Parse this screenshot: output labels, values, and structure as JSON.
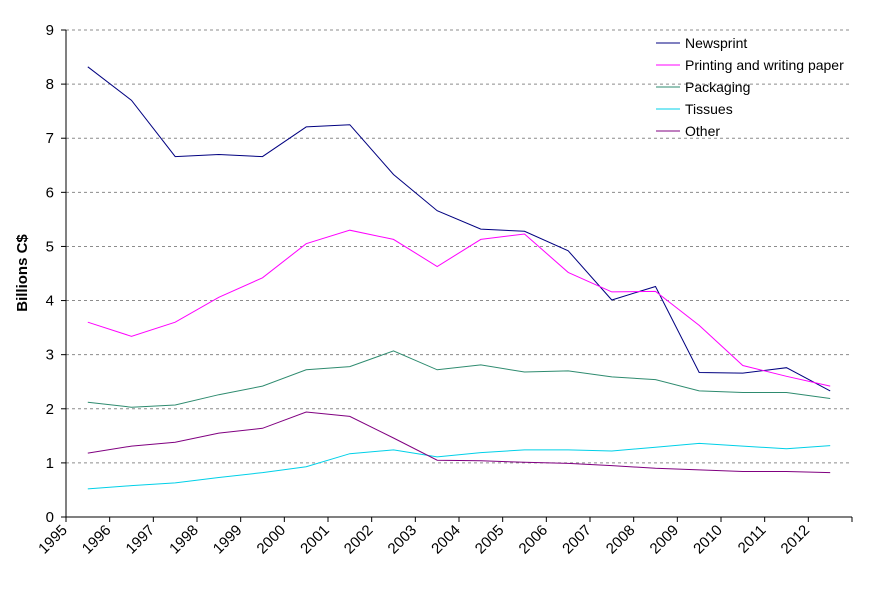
{
  "chart_data": {
    "type": "line",
    "title": "",
    "xlabel": "",
    "ylabel": "Billions C$",
    "ylim": [
      0,
      9
    ],
    "yticks": [
      "0",
      "1",
      "2",
      "3",
      "4",
      "5",
      "6",
      "7",
      "8",
      "9"
    ],
    "categories": [
      "1995",
      "1996",
      "1997",
      "1998",
      "1999",
      "2000",
      "2001",
      "2002",
      "2003",
      "2004",
      "2005",
      "2006",
      "2007",
      "2008",
      "2009",
      "2010",
      "2011",
      "2012"
    ],
    "grid": true,
    "legend_position": "top-right",
    "series": [
      {
        "name": "Newsprint",
        "color": "#000080",
        "values": [
          8.32,
          7.7,
          6.66,
          6.7,
          6.66,
          7.21,
          7.25,
          6.33,
          5.66,
          5.32,
          5.28,
          4.92,
          4.01,
          4.26,
          2.67,
          2.66,
          2.76,
          2.33
        ]
      },
      {
        "name": "Printing and writing paper",
        "color": "#ff00ff",
        "values": [
          3.6,
          3.34,
          3.6,
          4.06,
          4.42,
          5.05,
          5.3,
          5.13,
          4.63,
          5.13,
          5.23,
          4.52,
          4.16,
          4.17,
          3.54,
          2.8,
          2.6,
          2.42
        ]
      },
      {
        "name": "Packaging",
        "color": "#2e8b6f",
        "values": [
          2.12,
          2.03,
          2.07,
          2.26,
          2.42,
          2.72,
          2.78,
          3.07,
          2.72,
          2.81,
          2.68,
          2.7,
          2.59,
          2.54,
          2.33,
          2.3,
          2.3,
          2.19
        ]
      },
      {
        "name": "Tissues",
        "color": "#00d0e8",
        "values": [
          0.52,
          0.58,
          0.63,
          0.73,
          0.82,
          0.93,
          1.17,
          1.24,
          1.11,
          1.19,
          1.24,
          1.24,
          1.22,
          1.29,
          1.36,
          1.31,
          1.26,
          1.32
        ]
      },
      {
        "name": "Other",
        "color": "#800080",
        "values": [
          1.18,
          1.31,
          1.38,
          1.55,
          1.64,
          1.94,
          1.86,
          1.46,
          1.05,
          1.04,
          1.01,
          0.99,
          0.95,
          0.9,
          0.87,
          0.84,
          0.84,
          0.82
        ]
      }
    ]
  }
}
